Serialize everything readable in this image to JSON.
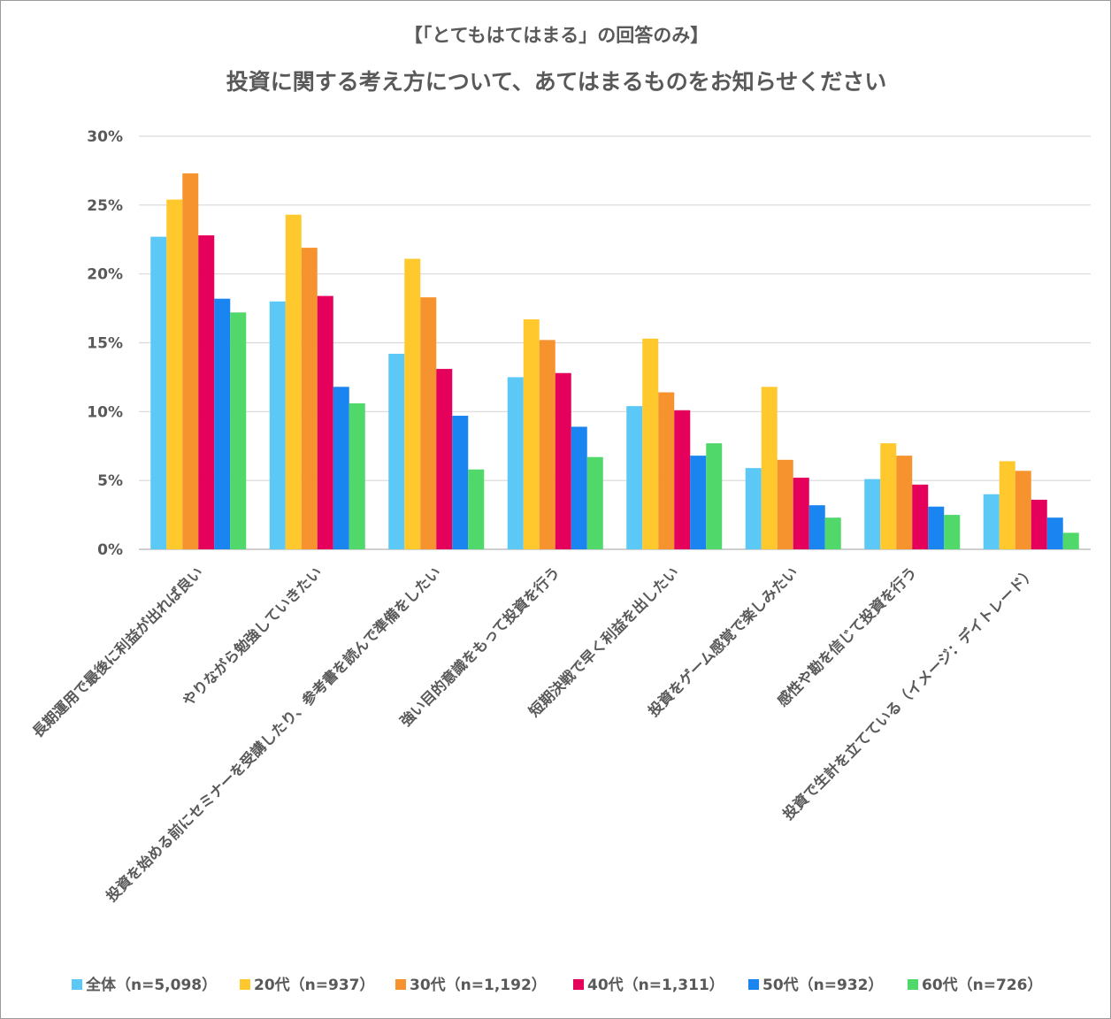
{
  "chart_data": {
    "type": "bar",
    "title": "【「とてもはてはまる」の回答のみ】",
    "subtitle": "投資に関する考え方について、あてはまるものをお知らせください",
    "xlabel": "",
    "ylabel": "",
    "ylim": [
      0,
      30
    ],
    "y_ticks": [
      "0%",
      "5%",
      "10%",
      "15%",
      "20%",
      "25%",
      "30%"
    ],
    "grid": true,
    "legend_position": "bottom",
    "categories": [
      "長期運用で最後に利益が出れば良い",
      "やりながら勉強していきたい",
      "投資を始める前にセミナーを受講したり、参考書を読んで準備をしたい",
      "強い目的意識をもって投資を行う",
      "短期決戦で早く利益を出したい",
      "投資をゲーム感覚で楽しみたい",
      "感性や勘を信じて投資を行う",
      "投資で生計を立てている（イメージ：デイトレード）"
    ],
    "series": [
      {
        "name": "全体（n=5,098）",
        "color": "#5bc8f5",
        "values": [
          22.7,
          18.0,
          14.2,
          12.5,
          10.4,
          5.9,
          5.1,
          4.0
        ]
      },
      {
        "name": "20代（n=937）",
        "color": "#ffc92e",
        "values": [
          25.4,
          24.3,
          21.1,
          16.7,
          15.3,
          11.8,
          7.7,
          6.4
        ]
      },
      {
        "name": "30代（n=1,192）",
        "color": "#f7932e",
        "values": [
          27.3,
          21.9,
          18.3,
          15.2,
          11.4,
          6.5,
          6.8,
          5.7
        ]
      },
      {
        "name": "40代（n=1,311）",
        "color": "#e5005b",
        "values": [
          22.8,
          18.4,
          13.1,
          12.8,
          10.1,
          5.2,
          4.7,
          3.6
        ]
      },
      {
        "name": "50代（n=932）",
        "color": "#1a84f0",
        "values": [
          18.2,
          11.8,
          9.7,
          8.9,
          6.8,
          3.2,
          3.1,
          2.3
        ]
      },
      {
        "name": "60代（n=726）",
        "color": "#50d86a",
        "values": [
          17.2,
          10.6,
          5.8,
          6.7,
          7.7,
          2.3,
          2.5,
          1.2
        ]
      }
    ]
  }
}
